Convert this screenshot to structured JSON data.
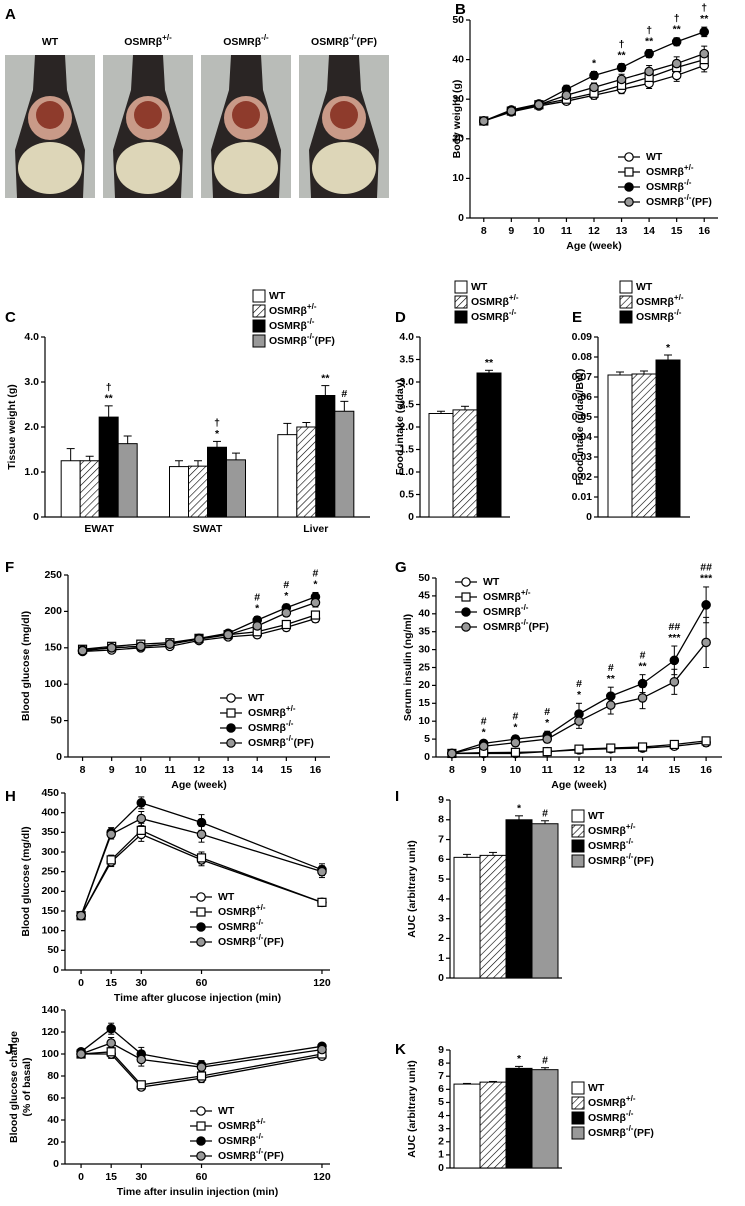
{
  "photos": {
    "panel": "A",
    "labels": [
      "WT",
      "OSMRβ+/-",
      "OSMRβ-/-",
      "OSMRβ-/-(PF)"
    ]
  },
  "chart_data": [
    {
      "panel": "B",
      "type": "line",
      "ylabel": "Body weight (g)",
      "xlabel": "Age (week)",
      "x": [
        8,
        9,
        10,
        11,
        12,
        13,
        14,
        15,
        16
      ],
      "xlim": [
        7.5,
        16.5
      ],
      "xticks": [
        8,
        9,
        10,
        11,
        12,
        13,
        14,
        15,
        16
      ],
      "ylim": [
        0,
        50
      ],
      "yticks": [
        0,
        10,
        20,
        30,
        40,
        50
      ],
      "series": [
        {
          "name": "WT",
          "color": "#ffffff",
          "marker": "circle",
          "values": [
            24.5,
            26.8,
            28.3,
            29.5,
            31,
            32.5,
            34,
            36,
            38.5
          ],
          "errors": [
            0.5,
            0.6,
            0.6,
            0.8,
            1,
            1.1,
            1.3,
            1.5,
            1.6
          ]
        },
        {
          "name": "OSMRβ+/-",
          "color": "#ffffff",
          "marker": "square",
          "values": [
            24.5,
            27,
            28.6,
            30,
            31.5,
            33.5,
            35.5,
            38,
            40
          ],
          "errors": [
            0.5,
            0.6,
            0.7,
            0.8,
            1,
            1.2,
            1.4,
            1.6,
            1.8
          ]
        },
        {
          "name": "OSMRβ-/-",
          "color": "#000000",
          "marker": "circle",
          "values": [
            24.5,
            27.3,
            28.8,
            32.5,
            36,
            38,
            41.5,
            44.5,
            47
          ],
          "errors": [
            0.5,
            0.6,
            0.7,
            1,
            1,
            1,
            1,
            1,
            1.2
          ]
        },
        {
          "name": "OSMRβ-/-(PF)",
          "color": "#999999",
          "marker": "circle",
          "values": [
            24.5,
            27,
            28.6,
            31,
            33,
            35,
            37,
            39,
            41.5
          ],
          "errors": [
            0.5,
            0.6,
            0.7,
            0.9,
            1.1,
            1.3,
            1.5,
            1.7,
            1.9
          ]
        }
      ],
      "annotations": [
        null,
        null,
        null,
        null,
        [
          "*"
        ],
        [
          "†",
          "**"
        ],
        [
          "†",
          "**"
        ],
        [
          "†",
          "**"
        ],
        [
          "†",
          "**"
        ]
      ]
    },
    {
      "panel": "C",
      "type": "bar",
      "ylabel": "Tissue weight (g)",
      "categories": [
        "EWAT",
        "SWAT",
        "Liver"
      ],
      "ylim": [
        0,
        4
      ],
      "yticks": [
        0,
        {
          "value": 1,
          "label": "1.0"
        },
        {
          "value": 2,
          "label": "2.0"
        },
        {
          "value": 3,
          "label": "3.0"
        },
        {
          "value": 4,
          "label": "4.0"
        }
      ],
      "series": [
        {
          "name": "WT",
          "color": "#ffffff",
          "values": [
            1.25,
            1.12,
            1.83
          ],
          "errors": [
            0.27,
            0.13,
            0.25
          ]
        },
        {
          "name": "OSMRβ+/-",
          "color": "#ffffff",
          "hatch": true,
          "values": [
            1.25,
            1.13,
            2.0
          ],
          "errors": [
            0.1,
            0.12,
            0.1
          ]
        },
        {
          "name": "OSMRβ-/-",
          "color": "#000000",
          "values": [
            2.22,
            1.55,
            2.7
          ],
          "errors": [
            0.25,
            0.13,
            0.22
          ],
          "labels": [
            [
              "†",
              "**"
            ],
            [
              "†",
              "*"
            ],
            [
              "**"
            ]
          ]
        },
        {
          "name": "OSMRβ-/-(PF)",
          "color": "#999999",
          "values": [
            1.63,
            1.27,
            2.35
          ],
          "errors": [
            0.17,
            0.15,
            0.22
          ],
          "labels": [
            null,
            null,
            [
              "#"
            ]
          ]
        }
      ]
    },
    {
      "panel": "D",
      "type": "bar",
      "ylabel": "Food intake (g/day)",
      "categories": [
        null
      ],
      "ylim": [
        0,
        4
      ],
      "yticks": [
        0,
        0.5,
        {
          "value": 1,
          "label": "1.0"
        },
        1.5,
        {
          "value": 2,
          "label": "2.0"
        },
        2.5,
        {
          "value": 3,
          "label": "3.0"
        },
        3.5,
        {
          "value": 4,
          "label": "4.0"
        }
      ],
      "series": [
        {
          "name": "WT",
          "color": "#ffffff",
          "values": [
            2.3
          ],
          "errors": [
            0.05
          ]
        },
        {
          "name": "OSMRβ+/-",
          "color": "#ffffff",
          "hatch": true,
          "values": [
            2.38
          ],
          "errors": [
            0.08
          ]
        },
        {
          "name": "OSMRβ-/-",
          "color": "#000000",
          "values": [
            3.2
          ],
          "errors": [
            0.06
          ],
          "labels": [
            [
              "**"
            ]
          ]
        }
      ]
    },
    {
      "panel": "E",
      "type": "bar",
      "ylabel": "Food intake (g/day/BW)",
      "categories": [
        null
      ],
      "ylim": [
        0,
        0.09
      ],
      "yticks": [
        0,
        0.01,
        0.02,
        0.03,
        0.04,
        0.05,
        0.06,
        0.07,
        0.08,
        0.09
      ],
      "series": [
        {
          "name": "WT",
          "color": "#ffffff",
          "values": [
            0.071
          ],
          "errors": [
            0.0015
          ]
        },
        {
          "name": "OSMRβ+/-",
          "color": "#ffffff",
          "hatch": true,
          "values": [
            0.0715
          ],
          "errors": [
            0.0015
          ]
        },
        {
          "name": "OSMRβ-/-",
          "color": "#000000",
          "values": [
            0.0785
          ],
          "errors": [
            0.0025
          ],
          "labels": [
            [
              "*"
            ]
          ]
        }
      ]
    },
    {
      "panel": "F",
      "type": "line",
      "ylabel": "Blood glucose (mg/dl)",
      "xlabel": "Age (week)",
      "x": [
        8,
        9,
        10,
        11,
        12,
        13,
        14,
        15,
        16
      ],
      "xlim": [
        7.5,
        16.5
      ],
      "xticks": [
        8,
        9,
        10,
        11,
        12,
        13,
        14,
        15,
        16
      ],
      "ylim": [
        0,
        250
      ],
      "yticks": [
        0,
        50,
        100,
        150,
        200,
        250
      ],
      "series": [
        {
          "name": "WT",
          "color": "#ffffff",
          "marker": "circle",
          "values": [
            145,
            147,
            150,
            152,
            160,
            165,
            168,
            178,
            190
          ],
          "errors": [
            3,
            3,
            3,
            3,
            4,
            4,
            4,
            5,
            5
          ]
        },
        {
          "name": "OSMRβ+/-",
          "color": "#ffffff",
          "marker": "square",
          "values": [
            148,
            152,
            155,
            157,
            163,
            168,
            172,
            182,
            195
          ],
          "errors": [
            3,
            3,
            3,
            3,
            4,
            4,
            4,
            5,
            5
          ]
        },
        {
          "name": "OSMRβ-/-",
          "color": "#000000",
          "marker": "circle",
          "values": [
            147,
            150,
            152,
            155,
            163,
            170,
            188,
            205,
            220
          ],
          "errors": [
            3,
            3,
            3,
            3,
            4,
            4,
            5,
            5,
            6
          ]
        },
        {
          "name": "OSMRβ-/-(PF)",
          "color": "#999999",
          "marker": "circle",
          "values": [
            146,
            150,
            152,
            155,
            162,
            168,
            180,
            198,
            212
          ],
          "errors": [
            3,
            3,
            3,
            3,
            4,
            4,
            5,
            5,
            6
          ]
        }
      ],
      "annotations": [
        null,
        null,
        null,
        null,
        null,
        null,
        [
          "#",
          "*"
        ],
        [
          "#",
          "*"
        ],
        [
          "#",
          "*"
        ]
      ]
    },
    {
      "panel": "G",
      "type": "line",
      "ylabel": "Serum insulin (ng/ml)",
      "xlabel": "Age (week)",
      "x": [
        8,
        9,
        10,
        11,
        12,
        13,
        14,
        15,
        16
      ],
      "xlim": [
        7.5,
        16.5
      ],
      "xticks": [
        8,
        9,
        10,
        11,
        12,
        13,
        14,
        15,
        16
      ],
      "ylim": [
        0,
        50
      ],
      "yticks": [
        0,
        5,
        10,
        15,
        20,
        25,
        30,
        35,
        40,
        45,
        50
      ],
      "series": [
        {
          "name": "WT",
          "color": "#ffffff",
          "marker": "circle",
          "values": [
            1,
            1,
            1,
            1.5,
            2,
            2.3,
            2.5,
            3,
            4
          ],
          "errors": [
            0.2,
            0.2,
            0.2,
            0.3,
            0.4,
            0.4,
            0.5,
            0.8,
            1
          ]
        },
        {
          "name": "OSMRβ+/-",
          "color": "#ffffff",
          "marker": "square",
          "values": [
            1,
            1.2,
            1.3,
            1.5,
            2.2,
            2.5,
            2.8,
            3.5,
            4.5
          ],
          "errors": [
            0.2,
            0.2,
            0.2,
            0.3,
            0.4,
            0.4,
            0.5,
            0.8,
            1
          ]
        },
        {
          "name": "OSMRβ-/-",
          "color": "#000000",
          "marker": "circle",
          "values": [
            1,
            3.8,
            5,
            6,
            12,
            17,
            20.5,
            27,
            42.5
          ],
          "errors": [
            0.3,
            0.8,
            1,
            1.2,
            3,
            2.5,
            2.5,
            4,
            5
          ]
        },
        {
          "name": "OSMRβ-/-(PF)",
          "color": "#999999",
          "marker": "circle",
          "values": [
            1,
            3,
            4,
            5,
            10,
            14.5,
            16.5,
            21,
            32
          ],
          "errors": [
            0.3,
            0.8,
            1,
            1,
            2,
            2.5,
            3,
            3.5,
            7
          ]
        }
      ],
      "annotations": [
        null,
        [
          "#",
          "*"
        ],
        [
          "#",
          "*"
        ],
        [
          "#",
          "*"
        ],
        [
          "#",
          "*"
        ],
        [
          "#",
          "**"
        ],
        [
          "#",
          "**"
        ],
        [
          "##",
          "***"
        ],
        [
          "##",
          "***"
        ]
      ]
    },
    {
      "panel": "H",
      "type": "line",
      "ylabel": "Blood glucose (mg/dl)",
      "xlabel": "Time after glucose injection (min)",
      "x": [
        0,
        15,
        30,
        60,
        120
      ],
      "xlim": [
        -8,
        124
      ],
      "xticks": [
        0,
        15,
        30,
        60,
        120
      ],
      "ylim": [
        0,
        450
      ],
      "yticks": [
        0,
        50,
        100,
        150,
        200,
        250,
        300,
        350,
        400,
        450
      ],
      "series": [
        {
          "name": "WT",
          "color": "#ffffff",
          "marker": "circle",
          "values": [
            138,
            275,
            345,
            280,
            172
          ],
          "errors": [
            6,
            12,
            18,
            15,
            8
          ]
        },
        {
          "name": "OSMRβ+/-",
          "color": "#ffffff",
          "marker": "square",
          "values": [
            138,
            280,
            355,
            285,
            172
          ],
          "errors": [
            6,
            12,
            18,
            15,
            8
          ]
        },
        {
          "name": "OSMRβ-/-",
          "color": "#000000",
          "marker": "circle",
          "values": [
            138,
            350,
            425,
            375,
            255
          ],
          "errors": [
            6,
            12,
            15,
            20,
            15
          ]
        },
        {
          "name": "OSMRβ-/-(PF)",
          "color": "#999999",
          "marker": "circle",
          "values": [
            138,
            345,
            385,
            345,
            250
          ],
          "errors": [
            6,
            12,
            18,
            20,
            15
          ]
        }
      ]
    },
    {
      "panel": "I",
      "type": "bar",
      "ylabel": "AUC (arbitrary unit)",
      "categories": [
        null
      ],
      "ylim": [
        0,
        9
      ],
      "yticks": [
        0,
        1,
        2,
        3,
        4,
        5,
        6,
        7,
        8,
        9
      ],
      "series": [
        {
          "name": "WT",
          "color": "#ffffff",
          "values": [
            6.1
          ],
          "errors": [
            0.15
          ]
        },
        {
          "name": "OSMRβ+/-",
          "color": "#ffffff",
          "hatch": true,
          "values": [
            6.2
          ],
          "errors": [
            0.15
          ]
        },
        {
          "name": "OSMRβ-/-",
          "color": "#000000",
          "values": [
            8.0
          ],
          "errors": [
            0.2
          ],
          "labels": [
            [
              "*"
            ]
          ]
        },
        {
          "name": "OSMRβ-/-(PF)",
          "color": "#999999",
          "values": [
            7.8
          ],
          "errors": [
            0.15
          ],
          "labels": [
            [
              "#"
            ]
          ]
        }
      ]
    },
    {
      "panel": "J",
      "type": "line",
      "ylabel": [
        "Blood glucose change",
        "(% of basal)"
      ],
      "xlabel": "Time after insulin injection (min)",
      "x": [
        0,
        15,
        30,
        60,
        120
      ],
      "xlim": [
        -8,
        124
      ],
      "xticks": [
        0,
        15,
        30,
        60,
        120
      ],
      "ylim": [
        0,
        140
      ],
      "yticks": [
        0,
        20,
        40,
        60,
        80,
        100,
        120,
        140
      ],
      "series": [
        {
          "name": "WT",
          "color": "#ffffff",
          "marker": "circle",
          "values": [
            100,
            100,
            70,
            78,
            98
          ],
          "errors": [
            3,
            4,
            3,
            4,
            3
          ]
        },
        {
          "name": "OSMRβ+/-",
          "color": "#ffffff",
          "marker": "square",
          "values": [
            100,
            102,
            72,
            80,
            100
          ],
          "errors": [
            3,
            4,
            3,
            4,
            3
          ]
        },
        {
          "name": "OSMRβ-/-",
          "color": "#000000",
          "marker": "circle",
          "values": [
            102,
            123,
            100,
            90,
            107
          ],
          "errors": [
            3,
            5,
            6,
            4,
            3
          ]
        },
        {
          "name": "OSMRβ-/-(PF)",
          "color": "#999999",
          "marker": "circle",
          "values": [
            100,
            110,
            95,
            88,
            104
          ],
          "errors": [
            3,
            5,
            6,
            4,
            3
          ]
        }
      ]
    },
    {
      "panel": "K",
      "type": "bar",
      "ylabel": "AUC (arbitrary unit)",
      "categories": [
        null
      ],
      "ylim": [
        0,
        9
      ],
      "yticks": [
        0,
        1,
        2,
        3,
        4,
        5,
        6,
        7,
        8,
        9
      ],
      "series": [
        {
          "name": "WT",
          "color": "#ffffff",
          "values": [
            6.4
          ],
          "errors": [
            0.05
          ]
        },
        {
          "name": "OSMRβ+/-",
          "color": "#ffffff",
          "hatch": true,
          "values": [
            6.55
          ],
          "errors": [
            0.05
          ]
        },
        {
          "name": "OSMRβ-/-",
          "color": "#000000",
          "values": [
            7.6
          ],
          "errors": [
            0.15
          ],
          "labels": [
            [
              "*"
            ]
          ]
        },
        {
          "name": "OSMRβ-/-(PF)",
          "color": "#999999",
          "values": [
            7.5
          ],
          "errors": [
            0.15
          ],
          "labels": [
            [
              "#"
            ]
          ]
        }
      ]
    }
  ]
}
